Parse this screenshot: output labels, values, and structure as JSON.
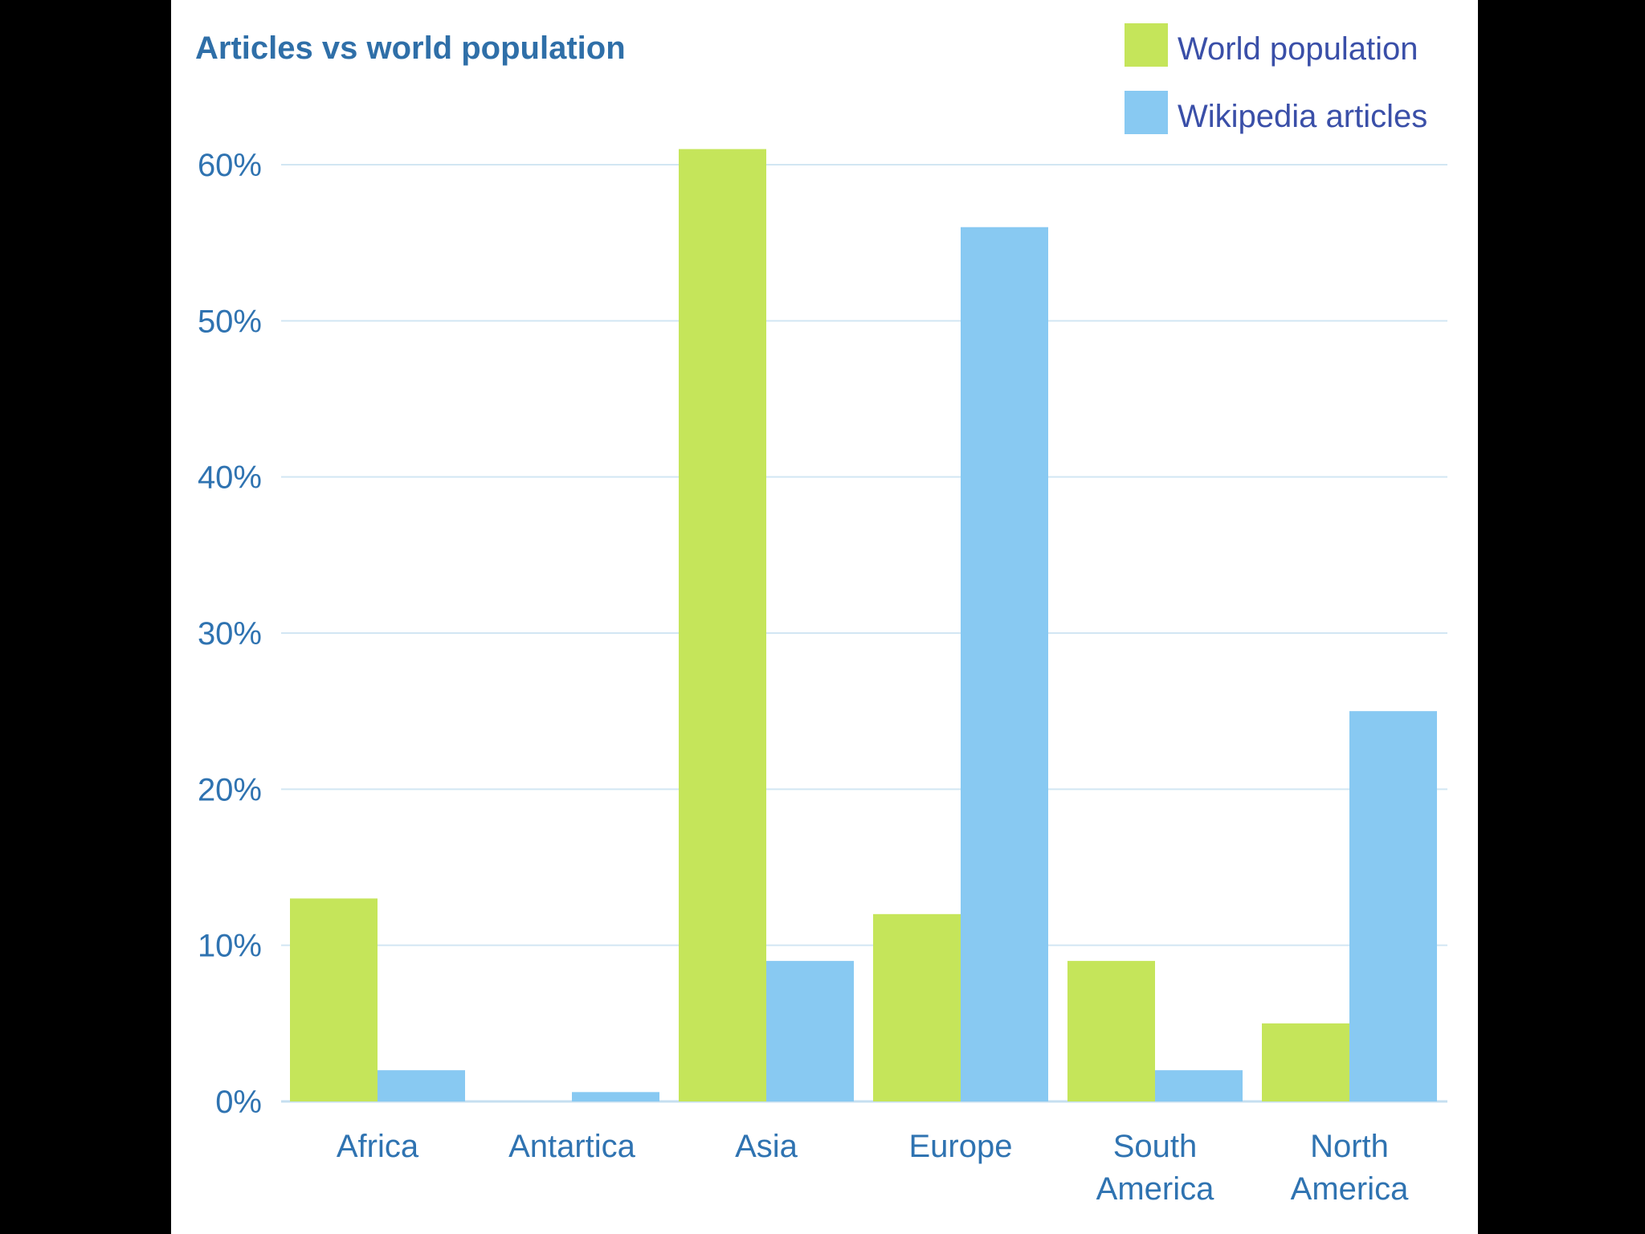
{
  "chart_data": {
    "type": "bar",
    "title": "Articles vs world population",
    "xlabel": "",
    "ylabel": "",
    "ylim": [
      0,
      60
    ],
    "y_ticks": [
      0,
      10,
      20,
      30,
      40,
      50,
      60
    ],
    "y_tick_labels": [
      "0%",
      "10%",
      "20%",
      "30%",
      "40%",
      "50%",
      "60%"
    ],
    "grid": true,
    "legend_position": "top-right",
    "categories": [
      "Africa",
      "Antartica",
      "Asia",
      "Europe",
      "South America",
      "North America"
    ],
    "category_label_lines": [
      [
        "Africa"
      ],
      [
        "Antartica"
      ],
      [
        "Asia"
      ],
      [
        "Europe"
      ],
      [
        "South",
        "America"
      ],
      [
        "North",
        "America"
      ]
    ],
    "series": [
      {
        "name": "World population",
        "color": "#c5e55a",
        "values": [
          13,
          0,
          61,
          12,
          9,
          5
        ]
      },
      {
        "name": "Wikipedia articles",
        "color": "#88c9f2",
        "values": [
          2,
          0.6,
          9,
          56,
          2,
          25
        ]
      }
    ],
    "colors": {
      "title": "#2f6fa8",
      "tick_text": "#2f73b1",
      "category_text": "#2f73b1",
      "legend_text": "#3a4fa8",
      "grid": "#d2e6f3",
      "axis": "#c6dff0"
    }
  }
}
